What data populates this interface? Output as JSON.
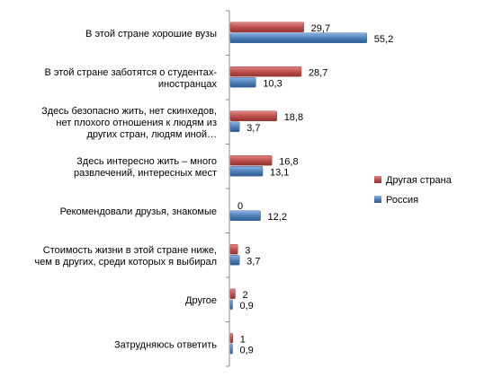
{
  "chart_data": {
    "type": "bar",
    "orientation": "horizontal",
    "categories": [
      [
        "В этой стране хорошие вузы"
      ],
      [
        "В этой стране заботятся о студентах-",
        "иностранцах"
      ],
      [
        "Здесь безопасно жить, нет скинхедов,",
        "нет плохого отношения к людям из",
        "других стран, людям иной…"
      ],
      [
        "Здесь интересно жить –  много",
        "развлечений, интересных мест"
      ],
      [
        "Рекомендовали друзья, знакомые"
      ],
      [
        "Стоимость жизни в этой стране ниже,",
        "чем в других, среди которых я выбирал"
      ],
      [
        "Другое"
      ],
      [
        "Затрудняюсь  ответить"
      ]
    ],
    "series": [
      {
        "name": "Другая страна",
        "color": "#c0504d",
        "values": [
          29.7,
          28.7,
          18.8,
          16.8,
          0,
          3,
          2,
          1
        ],
        "labels": [
          "29,7",
          "28,7",
          "18,8",
          "16,8",
          "0",
          "3",
          "2",
          "1"
        ]
      },
      {
        "name": "Россия",
        "color": "#4f81bd",
        "values": [
          55.2,
          10.3,
          3.7,
          13.1,
          12.2,
          3.7,
          0.9,
          0.9
        ],
        "labels": [
          "55,2",
          "10,3",
          "3,7",
          "13,1",
          "12,2",
          "3,7",
          "0,9",
          "0,9"
        ]
      }
    ],
    "xlim": [
      0,
      60
    ],
    "legend_position": "right",
    "grid": false,
    "title": "",
    "xlabel": "",
    "ylabel": ""
  }
}
